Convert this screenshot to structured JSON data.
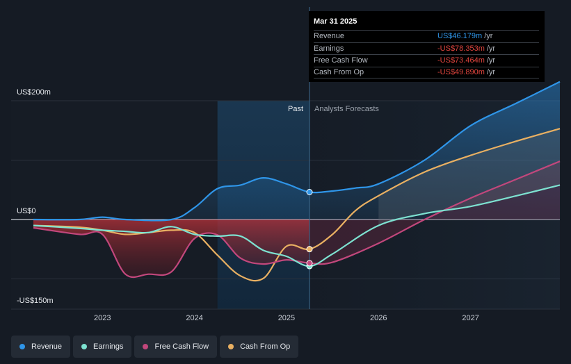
{
  "chart_data": {
    "type": "area",
    "currency_unit": "US$m",
    "y_labels": [
      "US$200m",
      "US$0",
      "-US$150m"
    ],
    "ylim": [
      -150,
      200
    ],
    "x_ticks": [
      "2023",
      "2024",
      "2025",
      "2026",
      "2027"
    ],
    "x_tick_values": [
      2023,
      2024,
      2025,
      2026,
      2027
    ],
    "xlim": [
      2022.25,
      2027.97
    ],
    "past_label": "Past",
    "forecast_label": "Analysts Forecasts",
    "divider_x": 2025.25,
    "shade_start_x": 2024.25,
    "series": [
      {
        "name": "Revenue",
        "color": "#2f95e8",
        "points": [
          [
            2022.25,
            0
          ],
          [
            2022.75,
            0
          ],
          [
            2023.0,
            4
          ],
          [
            2023.25,
            0
          ],
          [
            2023.75,
            0
          ],
          [
            2024.0,
            20
          ],
          [
            2024.25,
            52
          ],
          [
            2024.5,
            58
          ],
          [
            2024.75,
            70
          ],
          [
            2025.0,
            60
          ],
          [
            2025.25,
            46.2
          ],
          [
            2025.5,
            48
          ],
          [
            2025.75,
            53
          ],
          [
            2026.0,
            60
          ],
          [
            2026.5,
            100
          ],
          [
            2027.0,
            158
          ],
          [
            2027.5,
            196
          ],
          [
            2027.97,
            232
          ]
        ]
      },
      {
        "name": "Earnings",
        "color": "#7de2d1",
        "points": [
          [
            2022.25,
            -10
          ],
          [
            2022.75,
            -15
          ],
          [
            2023.0,
            -18
          ],
          [
            2023.25,
            -20
          ],
          [
            2023.5,
            -22
          ],
          [
            2023.75,
            -12
          ],
          [
            2024.0,
            -25
          ],
          [
            2024.25,
            -28
          ],
          [
            2024.5,
            -28
          ],
          [
            2024.75,
            -52
          ],
          [
            2025.0,
            -62
          ],
          [
            2025.25,
            -78.4
          ],
          [
            2025.5,
            -58
          ],
          [
            2026.0,
            -10
          ],
          [
            2026.5,
            10
          ],
          [
            2027.0,
            22
          ],
          [
            2027.5,
            40
          ],
          [
            2027.97,
            58
          ]
        ]
      },
      {
        "name": "Free Cash Flow",
        "color": "#c2477c",
        "points": [
          [
            2022.25,
            -14
          ],
          [
            2022.75,
            -25
          ],
          [
            2023.0,
            -25
          ],
          [
            2023.25,
            -92
          ],
          [
            2023.5,
            -92
          ],
          [
            2023.75,
            -88
          ],
          [
            2024.0,
            -32
          ],
          [
            2024.25,
            -26
          ],
          [
            2024.5,
            -65
          ],
          [
            2024.75,
            -75
          ],
          [
            2025.0,
            -68
          ],
          [
            2025.25,
            -73.5
          ],
          [
            2025.5,
            -72
          ],
          [
            2026.0,
            -40
          ],
          [
            2026.5,
            0
          ],
          [
            2027.0,
            36
          ],
          [
            2027.5,
            68
          ],
          [
            2027.97,
            98
          ]
        ]
      },
      {
        "name": "Cash From Op",
        "color": "#e9b062",
        "points": [
          [
            2022.25,
            -10
          ],
          [
            2022.75,
            -13
          ],
          [
            2023.0,
            -18
          ],
          [
            2023.25,
            -25
          ],
          [
            2023.5,
            -22
          ],
          [
            2023.75,
            -18
          ],
          [
            2024.0,
            -22
          ],
          [
            2024.25,
            -60
          ],
          [
            2024.5,
            -95
          ],
          [
            2024.75,
            -99
          ],
          [
            2025.0,
            -45
          ],
          [
            2025.25,
            -49.9
          ],
          [
            2025.5,
            -25
          ],
          [
            2025.75,
            15
          ],
          [
            2026.0,
            40
          ],
          [
            2026.5,
            80
          ],
          [
            2027.0,
            108
          ],
          [
            2027.5,
            132
          ],
          [
            2027.97,
            153
          ]
        ]
      }
    ]
  },
  "tooltip": {
    "date": "Mar 31 2025",
    "rows": [
      {
        "label": "Revenue",
        "value": "US$46.179m",
        "unit": "/yr",
        "color": "#2f95e8"
      },
      {
        "label": "Earnings",
        "value": "-US$78.353m",
        "unit": "/yr",
        "color": "#e0453e"
      },
      {
        "label": "Free Cash Flow",
        "value": "-US$73.464m",
        "unit": "/yr",
        "color": "#e0453e"
      },
      {
        "label": "Cash From Op",
        "value": "-US$49.890m",
        "unit": "/yr",
        "color": "#e0453e"
      }
    ]
  },
  "legend": [
    {
      "label": "Revenue",
      "color": "#2f95e8"
    },
    {
      "label": "Earnings",
      "color": "#7de2d1"
    },
    {
      "label": "Free Cash Flow",
      "color": "#c2477c"
    },
    {
      "label": "Cash From Op",
      "color": "#e9b062"
    }
  ]
}
